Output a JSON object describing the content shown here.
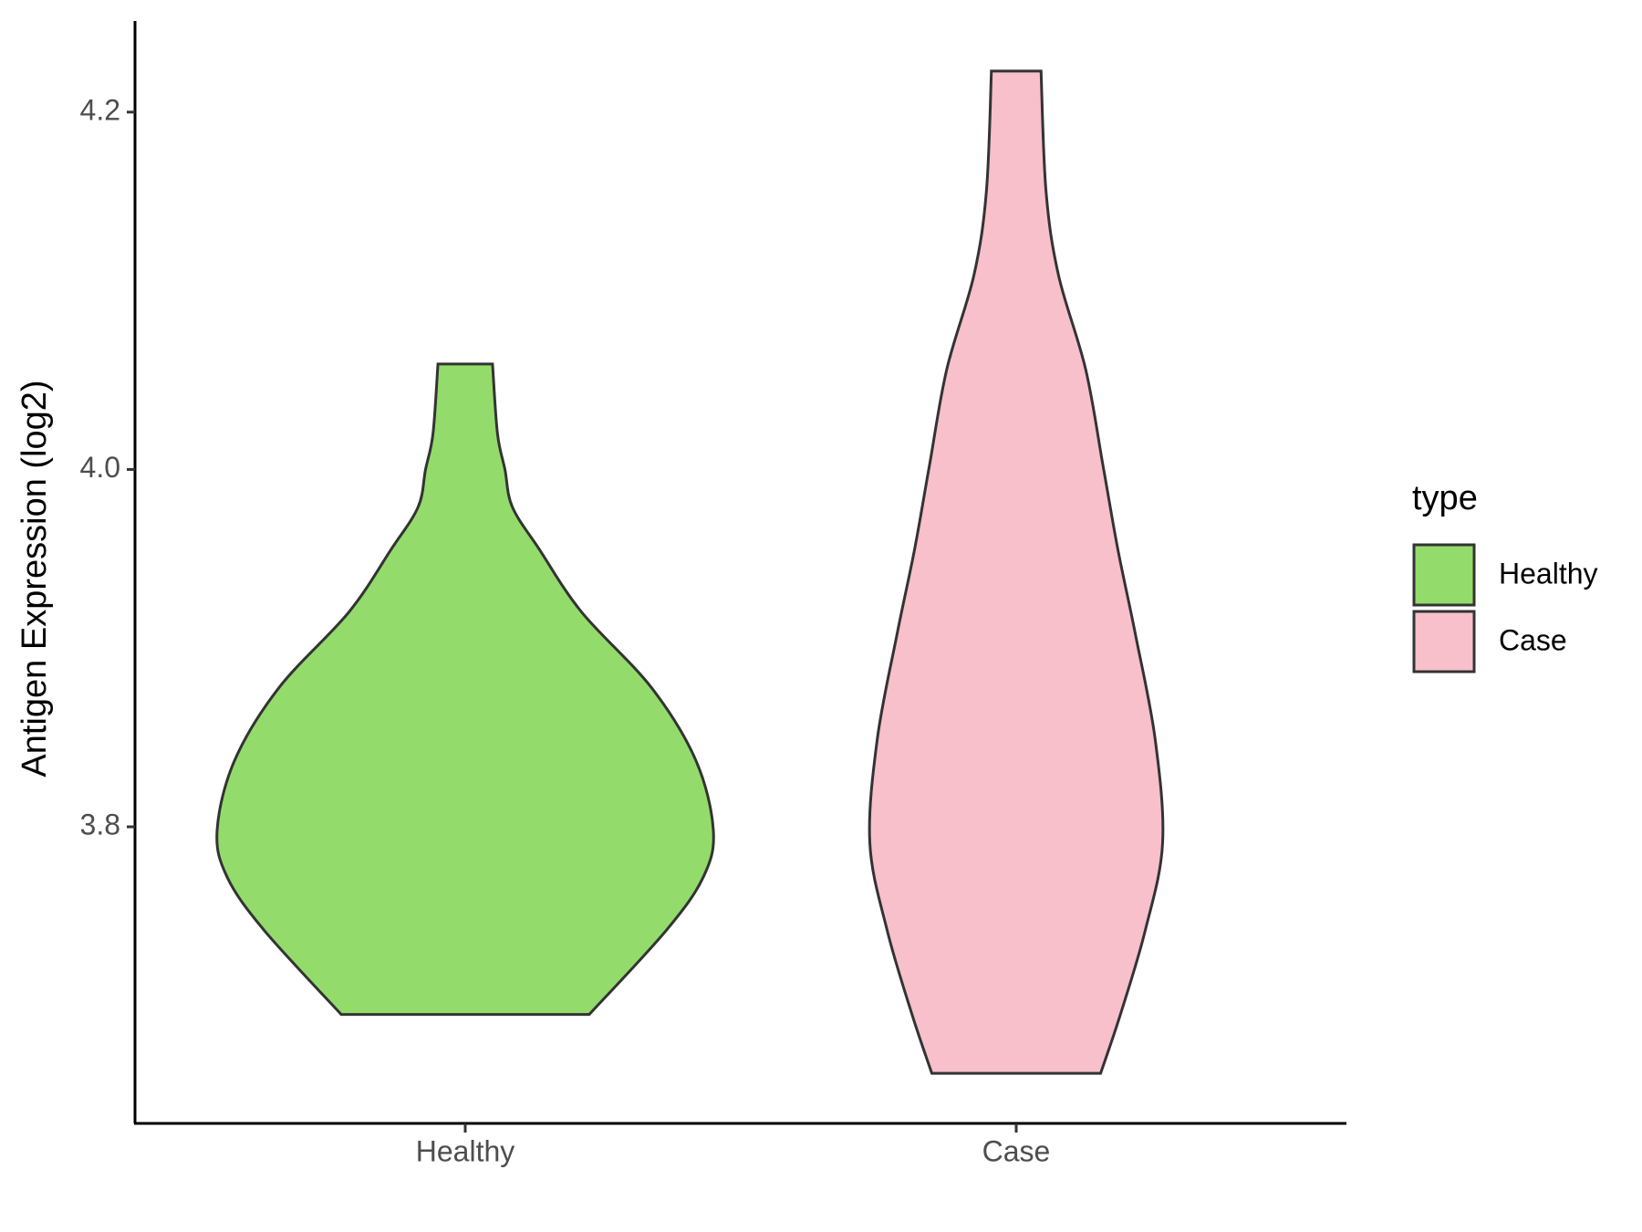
{
  "chart_data": {
    "type": "violin",
    "y_label": "Antigen Expression (log2)",
    "categories": [
      "Healthy",
      "Case"
    ],
    "legend_title": "type",
    "legend_position": "right",
    "ylim": [
      3.634,
      4.251
    ],
    "yticks": [
      3.8,
      {
        "value": 4.0,
        "label": "4.0"
      },
      4.2
    ],
    "series": [
      {
        "name": "Healthy",
        "color": "#93dc6b",
        "y": [
          4.059,
          4.02,
          4.0,
          3.979,
          3.955,
          3.92,
          3.878,
          3.837,
          3.798,
          3.772,
          3.742,
          3.695
        ],
        "width": [
          0.11,
          0.13,
          0.16,
          0.19,
          0.3,
          0.47,
          0.75,
          0.93,
          1.0,
          0.96,
          0.81,
          0.5
        ]
      },
      {
        "name": "Case",
        "color": "#f7c0cb",
        "y": [
          4.223,
          4.156,
          4.109,
          4.056,
          4.002,
          3.955,
          3.908,
          3.849,
          3.791,
          3.742,
          3.695,
          3.662
        ],
        "width": [
          0.1,
          0.12,
          0.17,
          0.28,
          0.35,
          0.41,
          0.48,
          0.56,
          0.59,
          0.52,
          0.42,
          0.34
        ]
      }
    ]
  }
}
